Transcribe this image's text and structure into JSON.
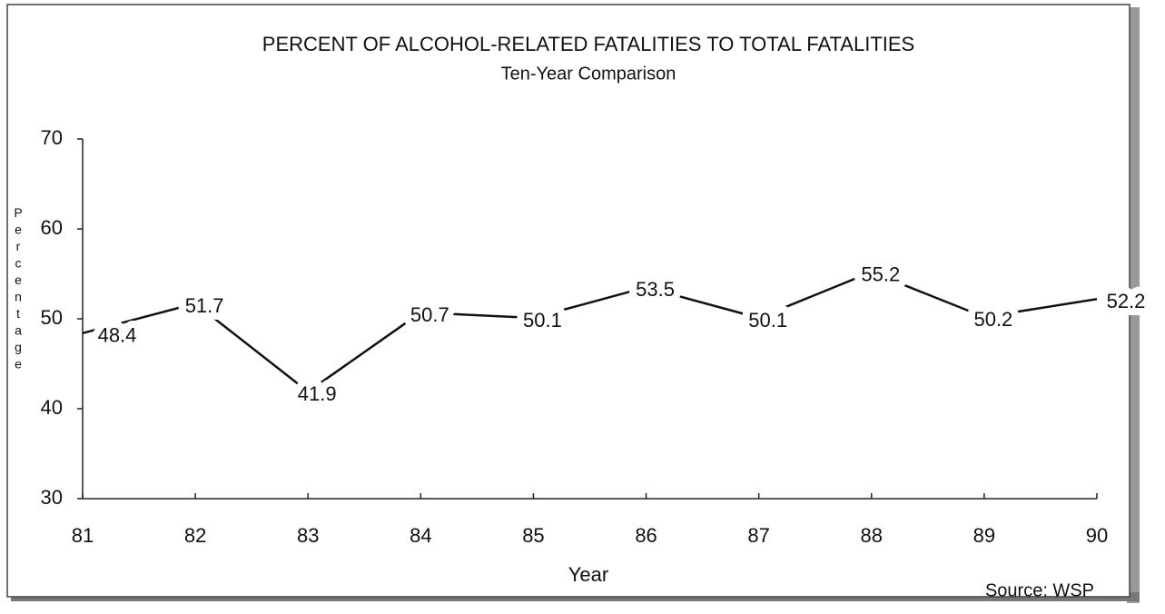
{
  "chart_data": {
    "type": "line",
    "title": "PERCENT OF ALCOHOL-RELATED FATALITIES TO TOTAL FATALITIES",
    "subtitle": "Ten-Year Comparison",
    "x_label": "Year",
    "y_label": "Percentage",
    "source": "Source: WSP",
    "x": [
      81,
      82,
      83,
      84,
      85,
      86,
      87,
      88,
      89,
      90
    ],
    "values": [
      48.4,
      51.7,
      41.9,
      50.7,
      50.1,
      53.5,
      50.1,
      55.2,
      50.2,
      52.2
    ],
    "color": "#111111",
    "xlim": [
      81,
      90
    ],
    "xticks": [
      81,
      82,
      83,
      84,
      85,
      86,
      87,
      88,
      89,
      90
    ],
    "ylim": [
      30,
      70
    ],
    "yticks": [
      30,
      40,
      50,
      60,
      70
    ],
    "grid": false
  }
}
